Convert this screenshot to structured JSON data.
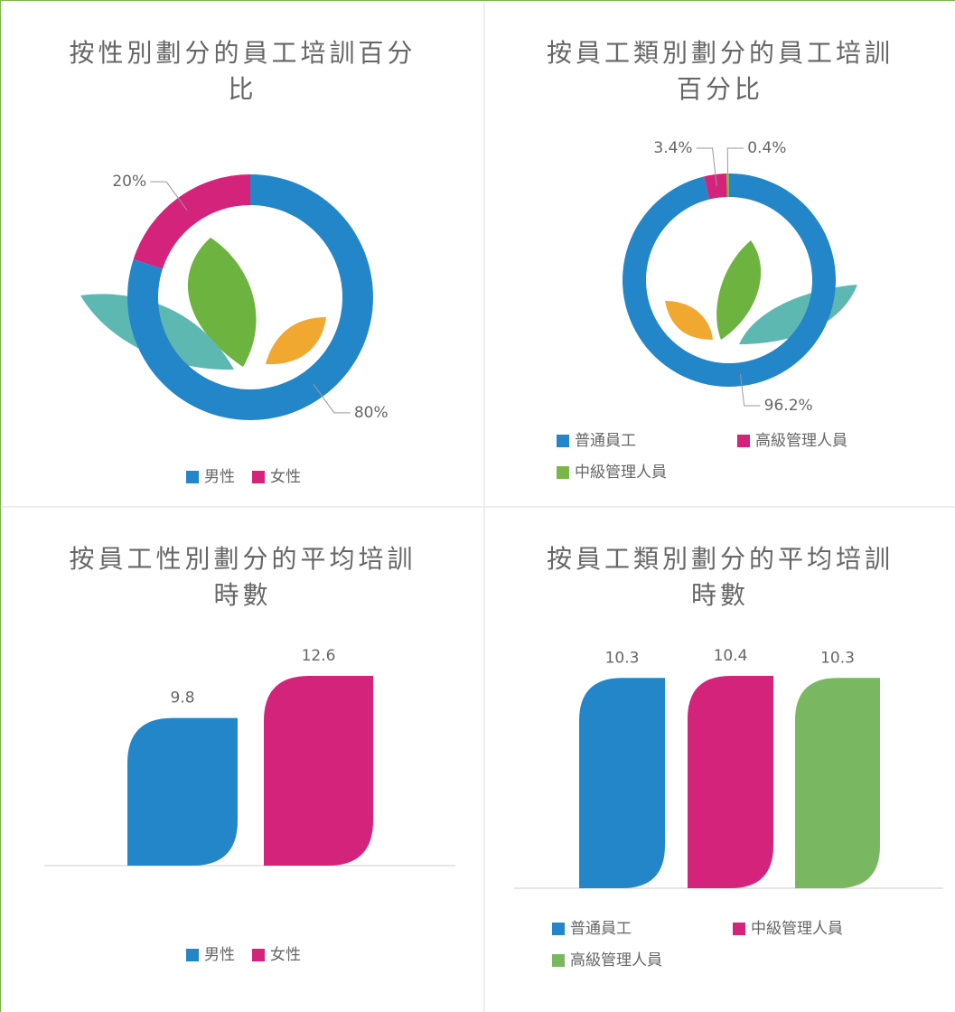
{
  "chart_data": [
    {
      "type": "donut",
      "title": "按性別劃分的員工培訓百分比",
      "categories": [
        "男性",
        "女性"
      ],
      "values": [
        80,
        20
      ],
      "value_labels": [
        "80%",
        "20%"
      ],
      "colors": [
        "#2386c8",
        "#d4237a"
      ]
    },
    {
      "type": "donut",
      "title": "按員工類別劃分的員工培訓百分比",
      "categories": [
        "普通員工",
        "高級管理人員",
        "中級管理人員"
      ],
      "values": [
        96.2,
        3.4,
        0.4
      ],
      "value_labels": [
        "96.2%",
        "3.4%",
        "0.4%"
      ],
      "colors": [
        "#2386c8",
        "#d4237a",
        "#7ab648"
      ]
    },
    {
      "type": "bar",
      "title": "按員工性別劃分的平均培訓時數",
      "categories": [
        "男性",
        "女性"
      ],
      "values": [
        9.8,
        12.6
      ],
      "colors": [
        "#2386c8",
        "#d4237a"
      ]
    },
    {
      "type": "bar",
      "title": "按員工類別劃分的平均培訓時數",
      "categories": [
        "普通員工",
        "中級管理人員",
        "高級管理人員"
      ],
      "values": [
        10.3,
        10.4,
        10.3
      ],
      "colors": [
        "#2386c8",
        "#d4237a",
        "#7ab761"
      ]
    }
  ]
}
